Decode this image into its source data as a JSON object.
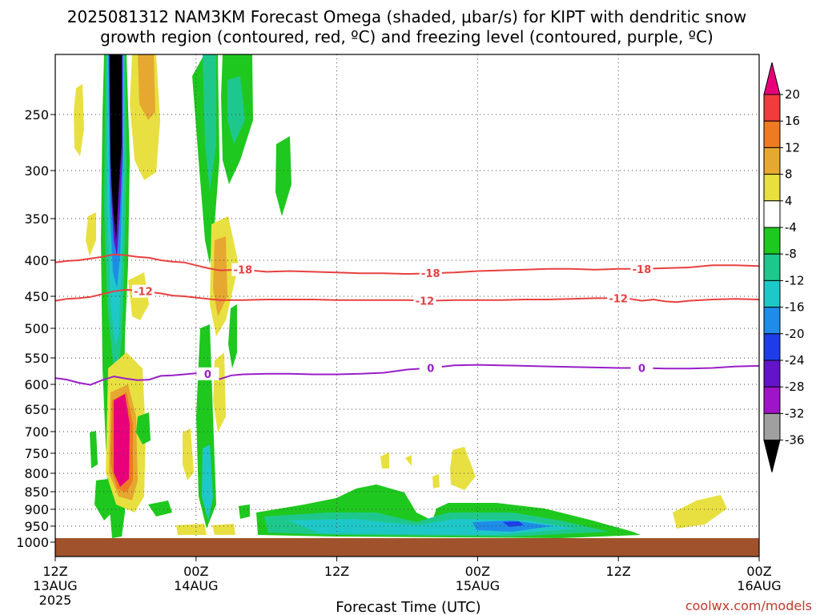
{
  "chart_data": {
    "type": "heatmap",
    "title_line1": "2025081312 NAM3KM Forecast Omega (shaded, μbar/s) for KIPT with dendritic snow",
    "title_line2": "growth region (contoured, red, ºC) and freezing level (contoured, purple, ºC)",
    "xlabel": "Forecast Time (UTC)",
    "credit": "coolwx.com/models",
    "x_range_hours": [
      0,
      60
    ],
    "x_ticks": [
      {
        "hour": 0,
        "line1": "12Z",
        "line2": "13AUG",
        "line3": "2025"
      },
      {
        "hour": 12,
        "line1": "00Z",
        "line2": "14AUG",
        "line3": ""
      },
      {
        "hour": 24,
        "line1": "12Z",
        "line2": "",
        "line3": ""
      },
      {
        "hour": 36,
        "line1": "00Z",
        "line2": "15AUG",
        "line3": ""
      },
      {
        "hour": 48,
        "line1": "12Z",
        "line2": "",
        "line3": ""
      },
      {
        "hour": 60,
        "line1": "00Z",
        "line2": "16AUG",
        "line3": ""
      }
    ],
    "y_axis_pressure_hpa": [
      250,
      300,
      350,
      400,
      450,
      500,
      550,
      600,
      650,
      700,
      750,
      800,
      850,
      900,
      950,
      1000
    ],
    "y_range_hpa": [
      200,
      1050
    ],
    "y_scale": "log-pressure",
    "colorbar": {
      "levels": [
        20,
        16,
        12,
        8,
        4,
        -4,
        -8,
        -12,
        -16,
        -20,
        -24,
        -28,
        -32,
        -36
      ],
      "labels": [
        "20",
        "16",
        "12",
        "8",
        "4",
        "-4",
        "-8",
        "-12",
        "-16",
        "-20",
        "-24",
        "-28",
        "-32",
        "-36"
      ],
      "colors": [
        "#e8007a",
        "#f03c3c",
        "#ee7b22",
        "#e6a830",
        "#e8e040",
        "#ffffff",
        "#1ec81e",
        "#1ec88c",
        "#1ec8c8",
        "#1e8ce8",
        "#1e3ce8",
        "#6414c8",
        "#a014c8",
        "#a0a0a0",
        "#000000"
      ]
    },
    "contours": [
      {
        "name": "-18",
        "color": "#e84040",
        "label_values": [
          "-18",
          "-18",
          "-18"
        ],
        "points": [
          [
            0,
            403
          ],
          [
            1,
            401
          ],
          [
            2,
            400
          ],
          [
            3,
            398
          ],
          [
            4,
            396
          ],
          [
            5,
            393
          ],
          [
            6,
            394
          ],
          [
            7,
            396
          ],
          [
            8,
            397
          ],
          [
            9,
            400
          ],
          [
            10,
            402
          ],
          [
            11,
            403
          ],
          [
            12,
            407
          ],
          [
            13,
            411
          ],
          [
            14,
            414
          ],
          [
            16,
            413
          ],
          [
            18,
            416
          ],
          [
            20,
            415
          ],
          [
            22,
            416
          ],
          [
            24,
            417
          ],
          [
            26,
            418
          ],
          [
            28,
            418
          ],
          [
            30,
            419
          ],
          [
            32,
            418
          ],
          [
            34,
            417
          ],
          [
            36,
            415
          ],
          [
            38,
            414
          ],
          [
            40,
            413
          ],
          [
            42,
            412
          ],
          [
            44,
            412
          ],
          [
            46,
            413
          ],
          [
            48,
            412
          ],
          [
            50,
            412
          ],
          [
            52,
            411
          ],
          [
            54,
            410
          ],
          [
            56,
            407
          ],
          [
            58,
            407
          ],
          [
            60,
            408
          ]
        ],
        "label_hours": [
          16,
          32,
          50
        ]
      },
      {
        "name": "-12",
        "color": "#e84040",
        "label_values": [
          "-12",
          "-12",
          "-12"
        ],
        "points": [
          [
            0,
            457
          ],
          [
            1,
            454
          ],
          [
            2,
            453
          ],
          [
            3,
            451
          ],
          [
            4,
            447
          ],
          [
            5,
            443
          ],
          [
            6,
            441
          ],
          [
            7,
            442
          ],
          [
            8,
            444
          ],
          [
            9,
            446
          ],
          [
            10,
            449
          ],
          [
            11,
            450
          ],
          [
            12,
            452
          ],
          [
            13,
            454
          ],
          [
            14,
            456
          ],
          [
            16,
            456
          ],
          [
            18,
            455
          ],
          [
            20,
            455
          ],
          [
            22,
            455
          ],
          [
            24,
            456
          ],
          [
            26,
            456
          ],
          [
            28,
            456
          ],
          [
            30,
            456
          ],
          [
            32,
            457
          ],
          [
            34,
            456
          ],
          [
            36,
            456
          ],
          [
            38,
            456
          ],
          [
            40,
            455
          ],
          [
            42,
            455
          ],
          [
            44,
            454
          ],
          [
            46,
            453
          ],
          [
            48,
            453
          ],
          [
            49,
            454
          ],
          [
            50,
            457
          ],
          [
            51,
            455
          ],
          [
            52,
            458
          ],
          [
            53,
            459
          ],
          [
            54,
            457
          ],
          [
            56,
            455
          ],
          [
            58,
            454
          ],
          [
            60,
            455
          ]
        ],
        "label_hours": [
          7.5,
          31.5,
          48
        ]
      },
      {
        "name": "0",
        "color": "#9a1ec8",
        "label_values": [
          "0",
          "0",
          "0"
        ],
        "points": [
          [
            0,
            588
          ],
          [
            1,
            591
          ],
          [
            2,
            597
          ],
          [
            3,
            601
          ],
          [
            4,
            592
          ],
          [
            5,
            585
          ],
          [
            6,
            589
          ],
          [
            7,
            592
          ],
          [
            8,
            591
          ],
          [
            9,
            584
          ],
          [
            10,
            583
          ],
          [
            11,
            581
          ],
          [
            12,
            579
          ],
          [
            13,
            580
          ],
          [
            14,
            590
          ],
          [
            15,
            583
          ],
          [
            16,
            581
          ],
          [
            18,
            580
          ],
          [
            20,
            580
          ],
          [
            22,
            581
          ],
          [
            24,
            581
          ],
          [
            26,
            580
          ],
          [
            28,
            578
          ],
          [
            30,
            572
          ],
          [
            32,
            569
          ],
          [
            34,
            564
          ],
          [
            36,
            563
          ],
          [
            38,
            564
          ],
          [
            40,
            565
          ],
          [
            42,
            566
          ],
          [
            44,
            567
          ],
          [
            46,
            568
          ],
          [
            48,
            569
          ],
          [
            50,
            569
          ],
          [
            52,
            570
          ],
          [
            54,
            570
          ],
          [
            56,
            569
          ],
          [
            58,
            566
          ],
          [
            60,
            565
          ]
        ],
        "label_hours": [
          13,
          32,
          50
        ]
      }
    ]
  }
}
